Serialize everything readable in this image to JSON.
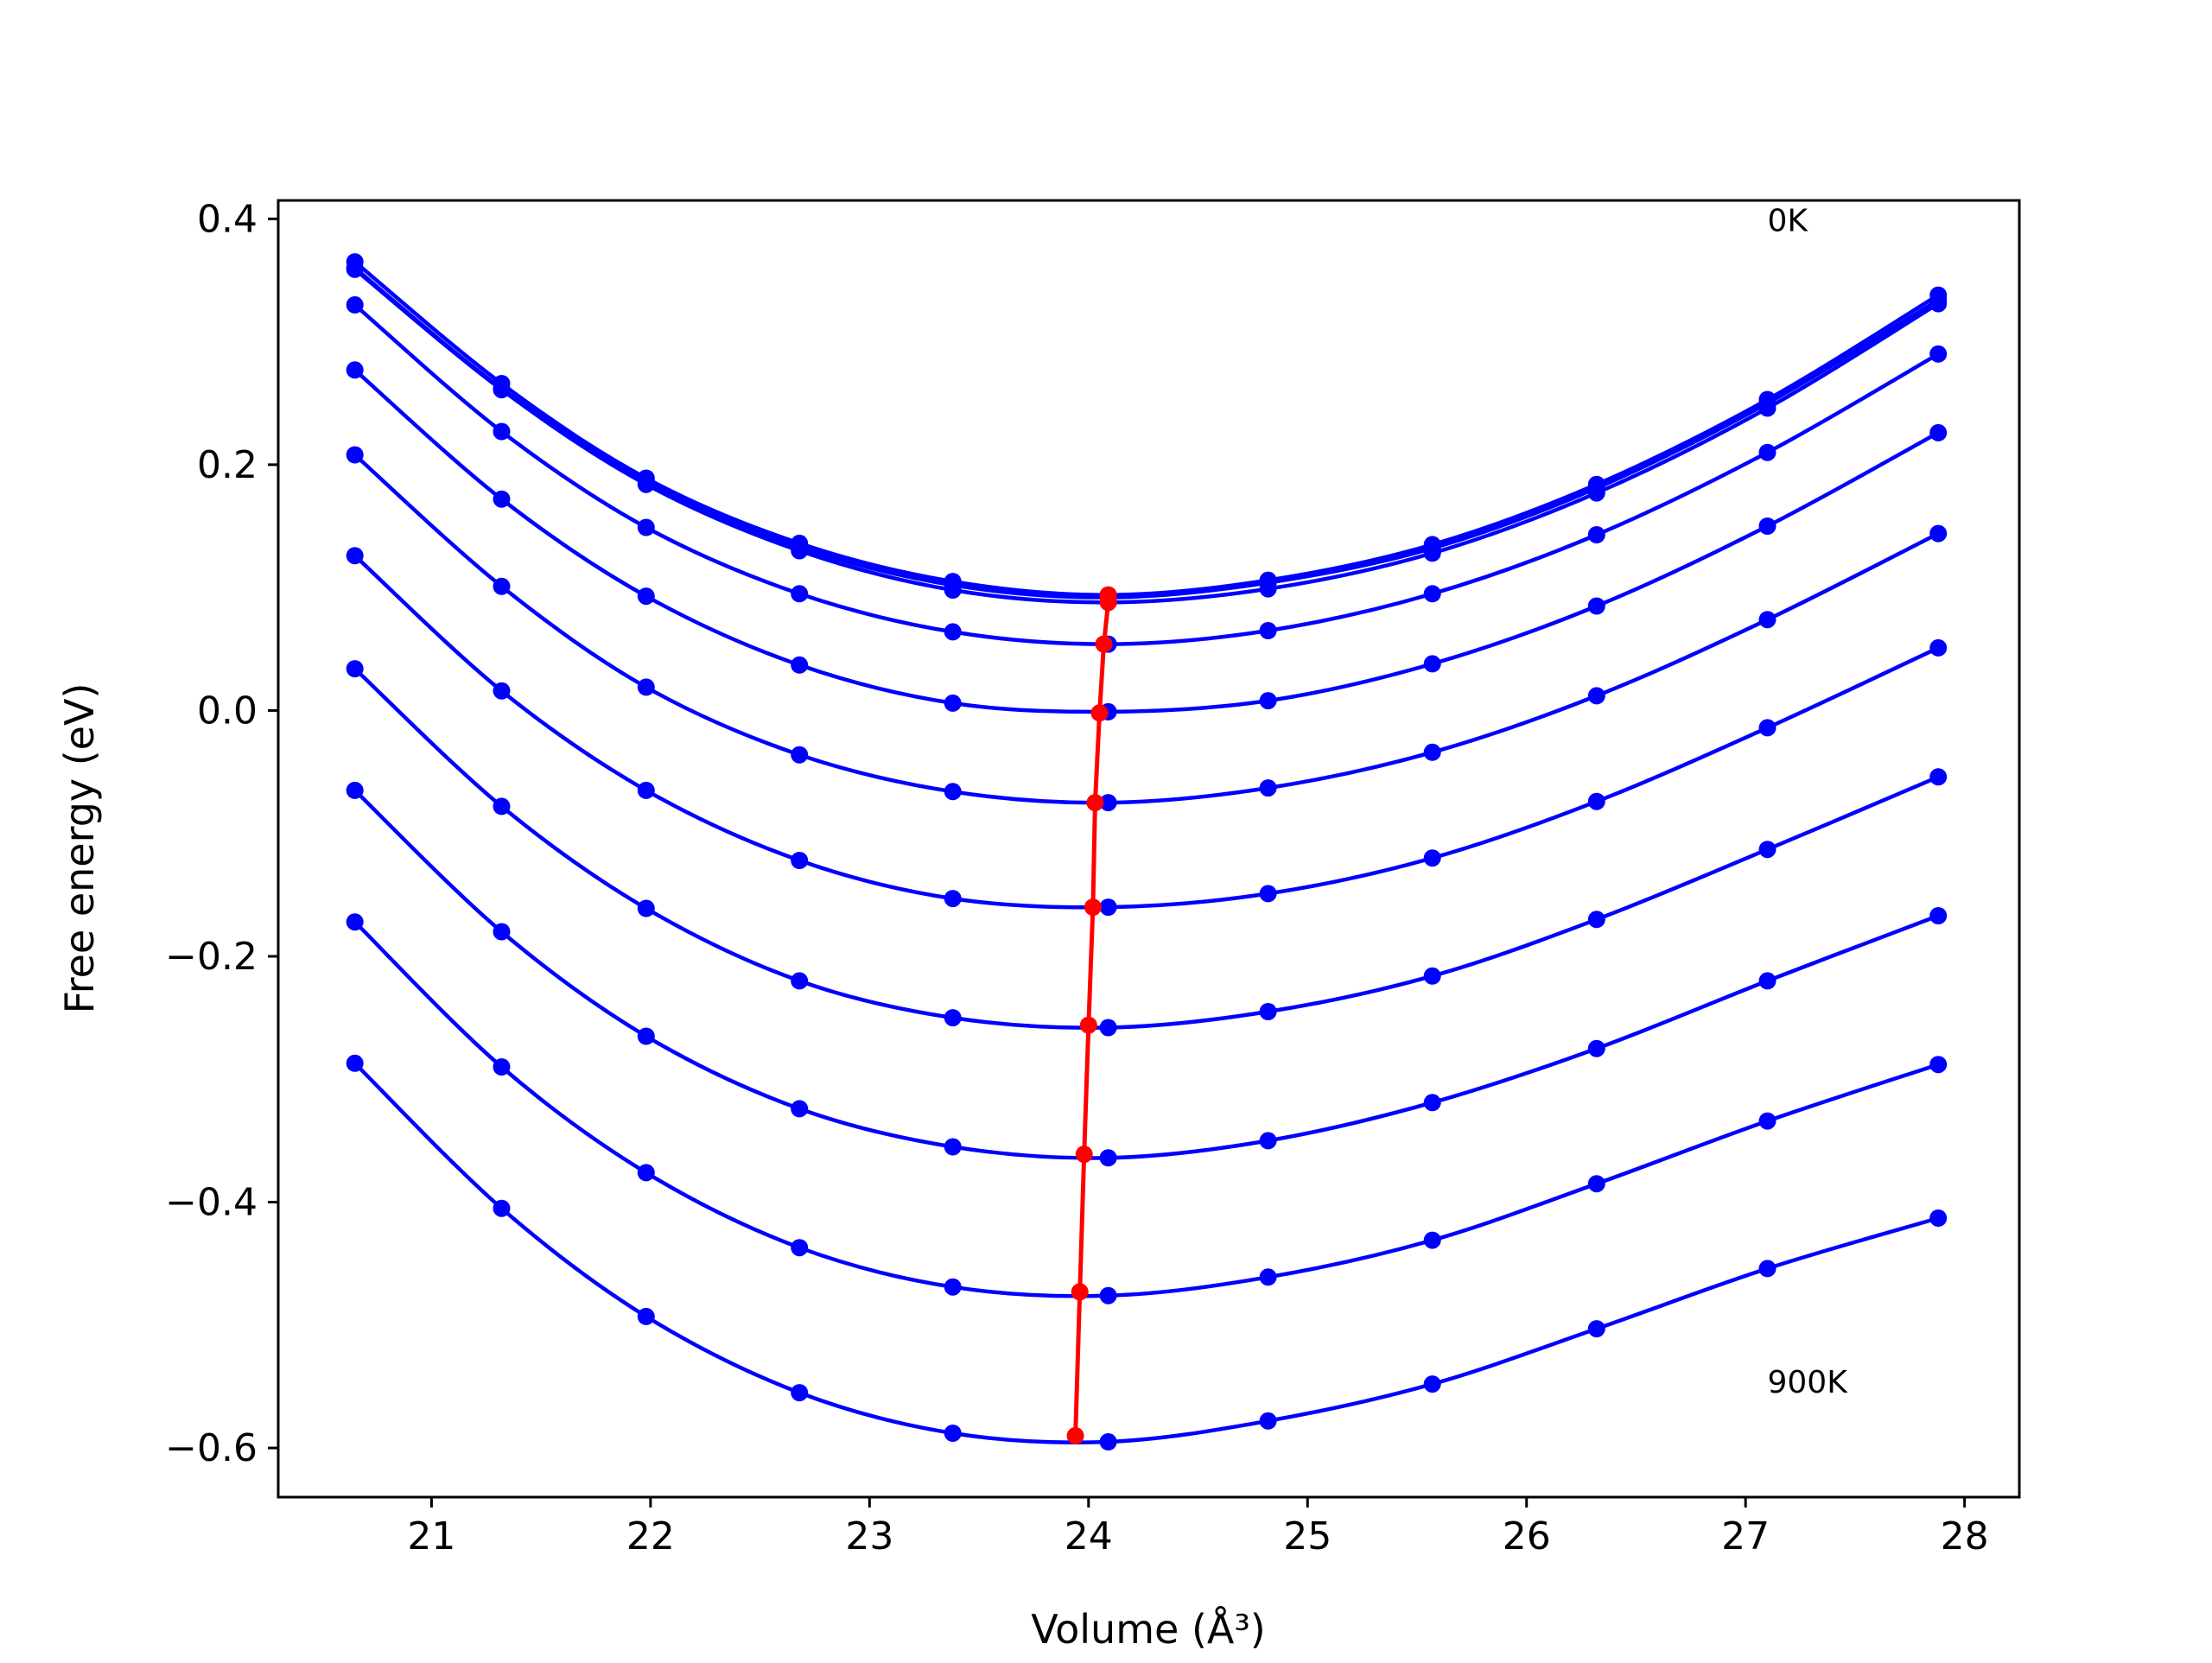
{
  "chart_data": {
    "type": "line",
    "xlabel": "Volume (Å³)",
    "ylabel": "Free energy (eV)",
    "xlim": [
      20.3,
      28.25
    ],
    "ylim": [
      -0.64,
      0.415
    ],
    "xticks": [
      21,
      22,
      23,
      24,
      25,
      26,
      27,
      28
    ],
    "yticks": [
      -0.6,
      -0.4,
      -0.2,
      0.0,
      0.2,
      0.4
    ],
    "ytick_labels": [
      "−0.6",
      "−0.4",
      "−0.2",
      "0.0",
      "0.2",
      "0.4"
    ],
    "grid": false,
    "legend": "none",
    "annotations": [
      {
        "text": "0K",
        "x": 27.1,
        "y": 0.39
      },
      {
        "text": "900K",
        "x": 27.1,
        "y": -0.555
      }
    ],
    "x": [
      20.65,
      21.32,
      21.98,
      22.68,
      23.38,
      24.09,
      24.82,
      25.57,
      26.32,
      27.1,
      27.88
    ],
    "series": [
      {
        "y": [
          0.365,
          0.266,
          0.189,
          0.136,
          0.105,
          0.094,
          0.106,
          0.135,
          0.184,
          0.253,
          0.338
        ],
        "fit_coeffs": [
          0.0939,
          0.0,
          0.028
        ],
        "min": [
          24.09,
          0.094
        ]
      },
      {
        "y": [
          0.36,
          0.262,
          0.187,
          0.133,
          0.102,
          0.092,
          0.104,
          0.132,
          0.181,
          0.25,
          0.334
        ],
        "fit_coeffs": [
          0.0915,
          0.0,
          0.0276
        ],
        "min": [
          24.09,
          0.092
        ]
      },
      {
        "y": [
          0.359,
          0.261,
          0.184,
          0.13,
          0.098,
          0.088,
          0.099,
          0.128,
          0.177,
          0.246,
          0.331
        ],
        "fit_coeffs": [
          0.0876,
          0.0,
          0.0277
        ],
        "min": [
          24.09,
          0.088
        ]
      },
      {
        "y": [
          0.33,
          0.227,
          0.149,
          0.095,
          0.064,
          0.054,
          0.065,
          0.095,
          0.143,
          0.21,
          0.29
        ],
        "fit_coeffs": [
          0.0539,
          0.0,
          0.0268
        ],
        "min": [
          24.07,
          0.054
        ]
      },
      {
        "y": [
          0.277,
          0.172,
          0.093,
          0.037,
          0.006,
          -0.001,
          0.008,
          0.038,
          0.085,
          0.15,
          0.226
        ],
        "fit_coeffs": [
          -0.002,
          0.0,
          0.026
        ],
        "min": [
          24.05,
          -0.002
        ]
      },
      {
        "y": [
          0.208,
          0.101,
          0.019,
          -0.036,
          -0.066,
          -0.075,
          -0.063,
          -0.034,
          0.012,
          0.074,
          0.144
        ],
        "fit_coeffs": [
          -0.075,
          0.0,
          0.0255
        ],
        "min": [
          24.03,
          -0.075
        ]
      },
      {
        "y": [
          0.126,
          0.016,
          -0.065,
          -0.122,
          -0.153,
          -0.16,
          -0.149,
          -0.12,
          -0.074,
          -0.014,
          0.051
        ],
        "fit_coeffs": [
          -0.16,
          0.0,
          0.0252
        ],
        "min": [
          24.02,
          -0.16
        ]
      },
      {
        "y": [
          0.034,
          -0.078,
          -0.161,
          -0.22,
          -0.25,
          -0.258,
          -0.245,
          -0.216,
          -0.17,
          -0.113,
          -0.054
        ],
        "fit_coeffs": [
          -0.256,
          0.0,
          0.0255
        ],
        "min": [
          24.0,
          -0.256
        ]
      },
      {
        "y": [
          -0.065,
          -0.18,
          -0.265,
          -0.324,
          -0.355,
          -0.364,
          -0.35,
          -0.319,
          -0.275,
          -0.22,
          -0.167
        ],
        "fit_coeffs": [
          -0.361,
          0.0,
          0.0245
        ],
        "min": [
          23.98,
          -0.361
        ]
      },
      {
        "y": [
          -0.172,
          -0.29,
          -0.376,
          -0.437,
          -0.469,
          -0.476,
          -0.461,
          -0.431,
          -0.385,
          -0.334,
          -0.288
        ],
        "fit_coeffs": [
          -0.473,
          0.0,
          0.024
        ],
        "min": [
          23.96,
          -0.473
        ]
      },
      {
        "y": [
          -0.287,
          -0.405,
          -0.493,
          -0.555,
          -0.588,
          -0.595,
          -0.578,
          -0.548,
          -0.503,
          -0.454,
          -0.413
        ],
        "fit_coeffs": [
          -0.59,
          0.0,
          0.0232
        ],
        "min": [
          23.94,
          -0.59
        ]
      }
    ],
    "minima_line": {
      "x": [
        24.09,
        24.09,
        24.09,
        24.07,
        24.05,
        24.03,
        24.02,
        24.0,
        23.98,
        23.96,
        23.94
      ],
      "y": [
        0.094,
        0.092,
        0.088,
        0.054,
        -0.002,
        -0.075,
        -0.16,
        -0.256,
        -0.361,
        -0.473,
        -0.59
      ]
    },
    "colors": {
      "series": "#0000ff",
      "minima": "#ff0000",
      "axes": "#000000",
      "background": "#ffffff"
    }
  }
}
